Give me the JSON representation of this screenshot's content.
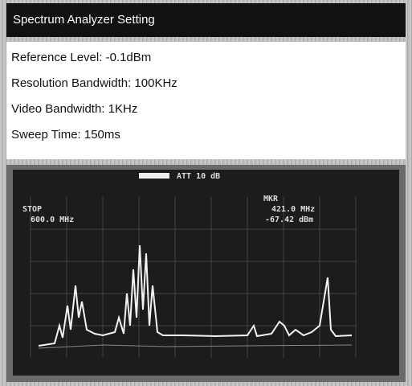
{
  "header": {
    "title": "Spectrum Analyzer Setting"
  },
  "settings": [
    "Reference Level: -0.1dBm",
    "Resolution Bandwidth: 100KHz",
    "Video Bandwidth: 1KHz",
    "Sweep Time: 150ms"
  ],
  "screen": {
    "attenuation": "ATT 10 dB",
    "marker_label": "MKR",
    "marker_freq": "421.0 MHz",
    "marker_level": "-67.42 dBm",
    "stop_label": "STOP",
    "stop_freq": "600.0 MHz"
  }
}
